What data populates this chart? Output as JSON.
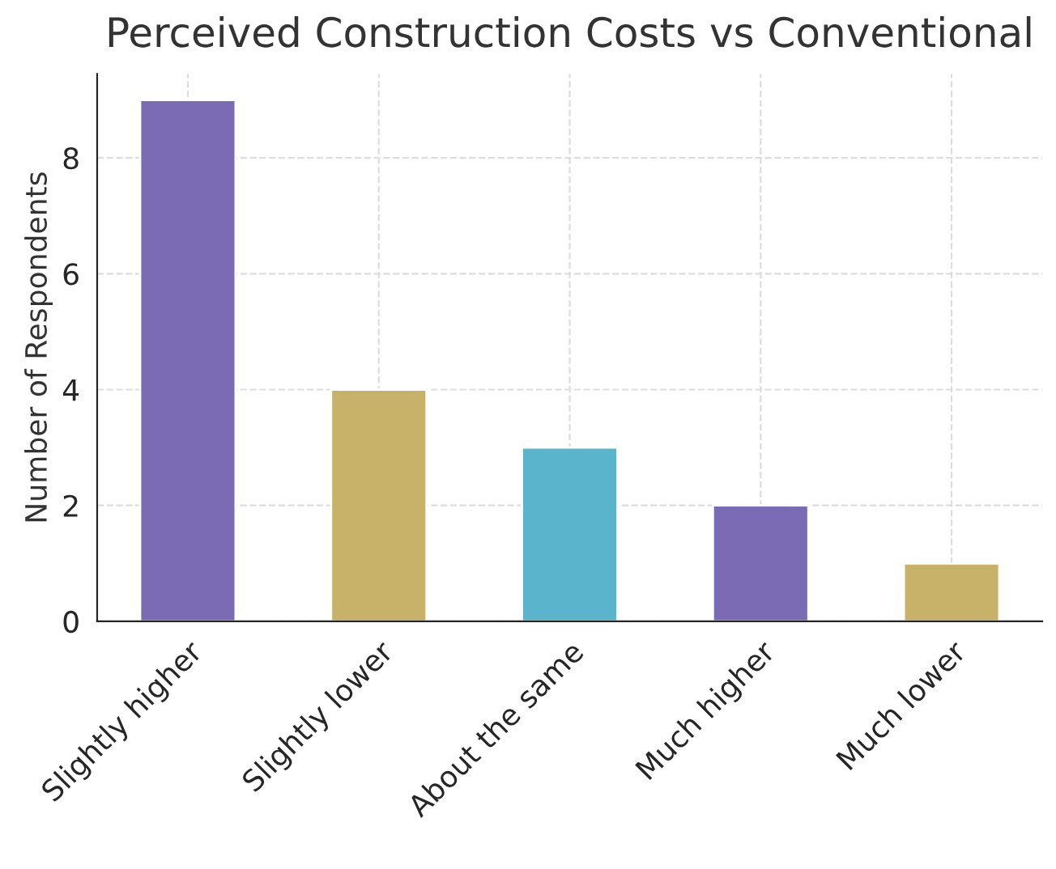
{
  "chart_data": {
    "type": "bar",
    "title": "Perceived Construction Costs vs Conventional",
    "ylabel": "Number of Respondents",
    "categories": [
      "Slightly higher",
      "Slightly lower",
      "About the same",
      "Much higher",
      "Much lower"
    ],
    "values": [
      9,
      4,
      3,
      2,
      1
    ],
    "colors": [
      "#7b6bb5",
      "#c8b26a",
      "#5ab4cc",
      "#7b6bb5",
      "#c8b26a"
    ],
    "ylim": [
      0,
      9.45
    ],
    "yticks": [
      0,
      2,
      4,
      6,
      8
    ],
    "grid": true
  }
}
